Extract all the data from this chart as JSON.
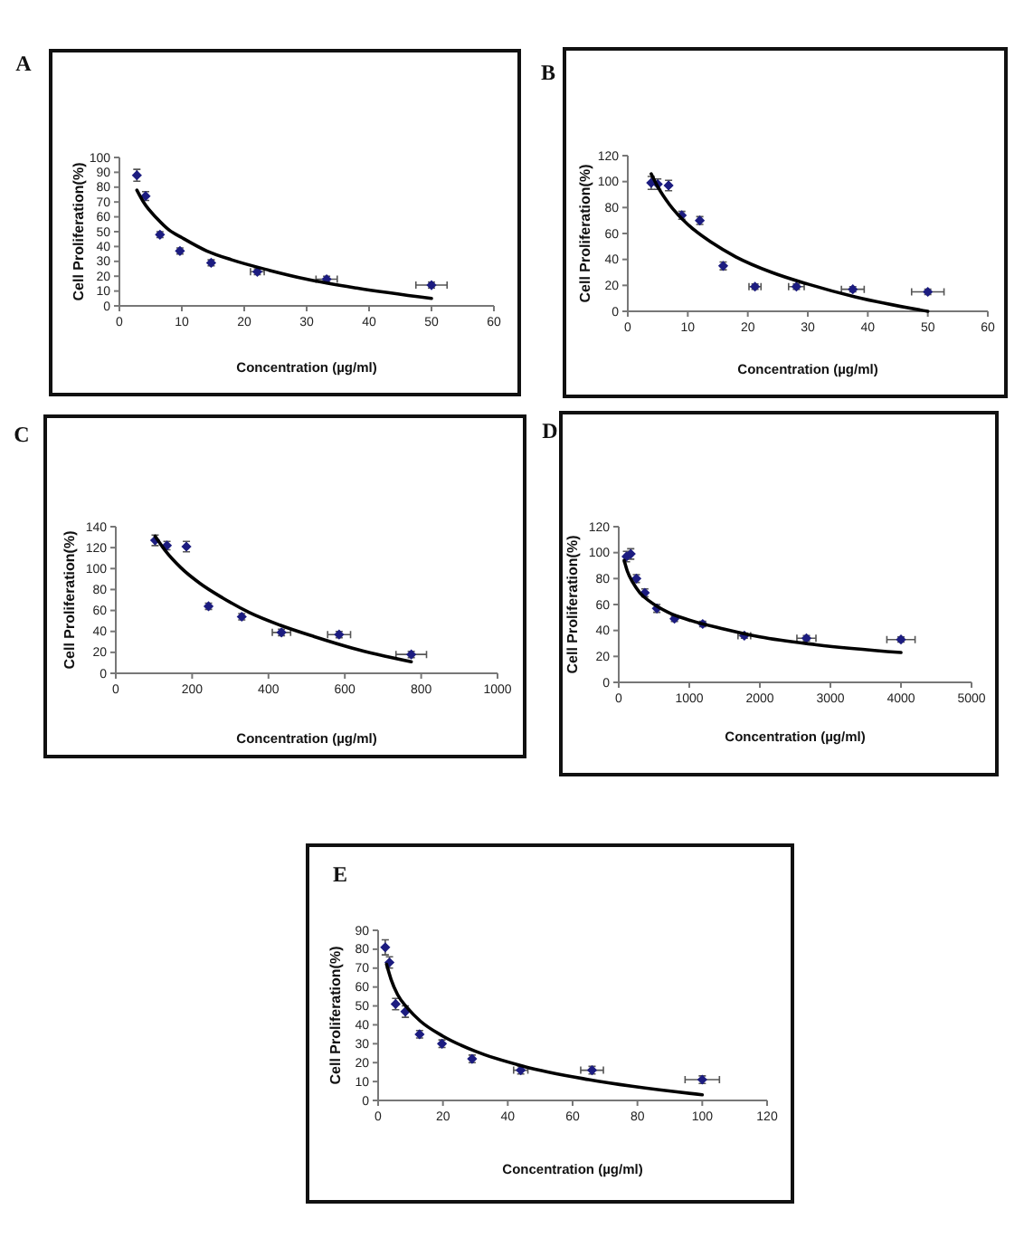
{
  "chart_data": [
    {
      "type": "scatter",
      "title": "A",
      "xlabel": "Concentration (µg/ml)",
      "ylabel": "Cell Proliferation(%)",
      "xlim": [
        0,
        60
      ],
      "xticks": [
        0,
        10,
        20,
        30,
        40,
        50,
        60
      ],
      "ylim": [
        0,
        100
      ],
      "yticks": [
        0,
        10,
        20,
        30,
        40,
        50,
        60,
        70,
        80,
        90,
        100
      ],
      "series": [
        {
          "type": "scatter",
          "marker": "diamond",
          "color": "#1c1c80",
          "x": [
            2.8,
            4.2,
            6.5,
            9.7,
            14.7,
            22.1,
            33.2,
            50
          ],
          "values": [
            88,
            74,
            48,
            37,
            29,
            23,
            18,
            14
          ],
          "errors": [
            4,
            3,
            2,
            2,
            2,
            2,
            2,
            2
          ],
          "xerrors": [
            null,
            null,
            null,
            null,
            null,
            1.1,
            1.7,
            2.5
          ]
        },
        {
          "type": "line",
          "color": "#000000",
          "x": [
            2.8,
            4,
            6,
            8,
            10,
            14,
            18,
            24,
            30,
            38,
            50
          ],
          "values": [
            78,
            69,
            59,
            51,
            46,
            37,
            31,
            24,
            18,
            12,
            5
          ]
        }
      ]
    },
    {
      "type": "scatter",
      "title": "B",
      "xlabel": "Concentration (µg/ml)",
      "ylabel": "Cell Proliferation(%)",
      "xlim": [
        0,
        60
      ],
      "xticks": [
        0,
        10,
        20,
        30,
        40,
        50,
        60
      ],
      "ylim": [
        0,
        120
      ],
      "yticks": [
        0,
        20,
        40,
        60,
        80,
        100,
        120
      ],
      "series": [
        {
          "type": "scatter",
          "marker": "diamond",
          "color": "#1c1c80",
          "x": [
            3.9,
            5.0,
            6.8,
            9.0,
            12.0,
            15.9,
            21.2,
            28.1,
            37.5,
            50
          ],
          "values": [
            99,
            98,
            97,
            74,
            70,
            35,
            19,
            19,
            17,
            15
          ],
          "errors": [
            5,
            4,
            4,
            3,
            3,
            3,
            2,
            2,
            2,
            2
          ],
          "xerrors": [
            null,
            null,
            null,
            null,
            null,
            null,
            1.0,
            1.3,
            1.9,
            2.7
          ]
        },
        {
          "type": "line",
          "color": "#000000",
          "x": [
            3.9,
            5,
            7,
            10,
            14,
            18,
            24,
            30,
            38,
            50
          ],
          "values": [
            106,
            96,
            82,
            67,
            53,
            42,
            30,
            21,
            11,
            0
          ]
        }
      ]
    },
    {
      "type": "scatter",
      "title": "C",
      "xlabel": "Concentration (µg/ml)",
      "ylabel": "Cell Proliferation(%)",
      "xlim": [
        0,
        1000
      ],
      "xticks": [
        0,
        200,
        400,
        600,
        800,
        1000
      ],
      "ylim": [
        0,
        140
      ],
      "yticks": [
        0,
        20,
        40,
        60,
        80,
        100,
        120,
        140
      ],
      "series": [
        {
          "type": "scatter",
          "marker": "diamond",
          "color": "#1c1c80",
          "x": [
            103,
            134,
            185,
            243,
            330,
            434,
            585,
            774
          ],
          "values": [
            127,
            122,
            121,
            64,
            54,
            39,
            37,
            18
          ],
          "errors": [
            5,
            4,
            5,
            3,
            3,
            3,
            3,
            3
          ],
          "xerrors": [
            null,
            null,
            null,
            null,
            null,
            24,
            30,
            40
          ]
        },
        {
          "type": "line",
          "color": "#000000",
          "x": [
            103,
            130,
            170,
            220,
            280,
            350,
            430,
            520,
            620,
            774
          ],
          "values": [
            131,
            117,
            101,
            86,
            72,
            58,
            46,
            35,
            24,
            11
          ]
        }
      ]
    },
    {
      "type": "scatter",
      "title": "D",
      "xlabel": "Concentration (µg/ml)",
      "ylabel": "Cell Proliferation(%)",
      "xlim": [
        0,
        5000
      ],
      "xticks": [
        0,
        1000,
        2000,
        3000,
        4000,
        5000
      ],
      "ylim": [
        0,
        120
      ],
      "yticks": [
        0,
        20,
        40,
        60,
        80,
        100,
        120
      ],
      "series": [
        {
          "type": "scatter",
          "marker": "diamond",
          "color": "#1c1c80",
          "x": [
            110,
            170,
            250,
            370,
            540,
            790,
            1190,
            1780,
            2660,
            4000
          ],
          "values": [
            97,
            99,
            80,
            69,
            57,
            49,
            45,
            36,
            34,
            33
          ],
          "errors": [
            4,
            4,
            3,
            3,
            3,
            2,
            2,
            2,
            2,
            2
          ],
          "xerrors": [
            null,
            null,
            null,
            null,
            null,
            null,
            null,
            90,
            135,
            200
          ]
        },
        {
          "type": "line",
          "color": "#000000",
          "x": [
            77,
            120,
            200,
            300,
            450,
            700,
            1000,
            1500,
            2000,
            2800,
            4000
          ],
          "values": [
            94,
            86,
            77,
            69,
            62,
            54,
            48,
            41,
            35,
            29,
            23
          ]
        }
      ]
    },
    {
      "type": "scatter",
      "title": "E",
      "xlabel": "Concentration (µg/ml)",
      "ylabel": "Cell Proliferation(%)",
      "xlim": [
        0,
        120
      ],
      "xticks": [
        0,
        20,
        40,
        60,
        80,
        100,
        120
      ],
      "ylim": [
        0,
        90
      ],
      "yticks": [
        0,
        10,
        20,
        30,
        40,
        50,
        60,
        70,
        80,
        90
      ],
      "series": [
        {
          "type": "scatter",
          "marker": "diamond",
          "color": "#1c1c80",
          "x": [
            2.2,
            3.5,
            5.4,
            8.4,
            12.8,
            19.7,
            29,
            44,
            66,
            100
          ],
          "values": [
            81,
            73,
            51,
            47,
            35,
            30,
            22,
            16,
            16,
            11
          ],
          "errors": [
            4,
            3,
            3,
            3,
            2,
            2,
            2,
            2,
            2,
            2
          ],
          "xerrors": [
            null,
            null,
            null,
            null,
            null,
            null,
            null,
            2.2,
            3.5,
            5.3
          ]
        },
        {
          "type": "line",
          "color": "#000000",
          "x": [
            2.6,
            4,
            6,
            9,
            13,
            20,
            30,
            45,
            65,
            100
          ],
          "values": [
            72,
            64,
            56,
            49,
            42,
            34,
            26,
            18,
            11,
            3
          ]
        }
      ]
    }
  ]
}
